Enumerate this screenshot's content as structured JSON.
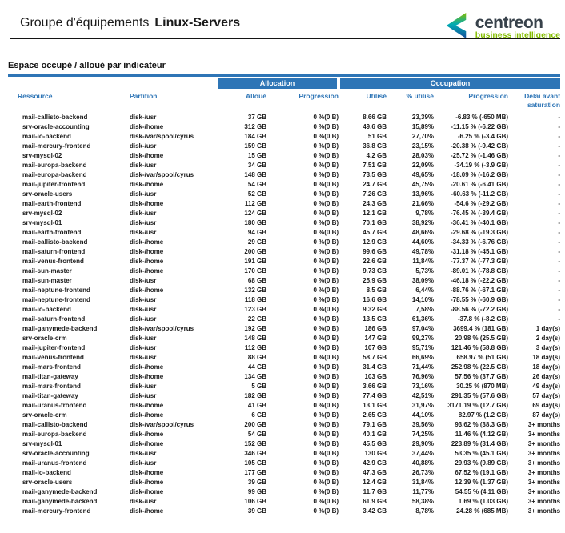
{
  "header": {
    "title_prefix": "Groupe d'équipements",
    "group_name": "Linux-Servers"
  },
  "logo": {
    "brand": "centreon",
    "tagline": "business intelligence"
  },
  "section": {
    "title": "Espace occupé / alloué par indicateur"
  },
  "colors": {
    "accent_blue": "#2e75b6",
    "logo_green": "#84bd00",
    "logo_teal": "#00abb3",
    "logo_navy": "#164e9c",
    "logo_dark": "#38424b",
    "text_dark": "#1b1b1b"
  },
  "table": {
    "group_headers": {
      "allocation": "Allocation",
      "occupation": "Occupation"
    },
    "columns": [
      "Ressource",
      "Partition",
      "Alloué",
      "Progression",
      "Utilisé",
      "% utilisé",
      "Progression",
      "Délai avant saturation"
    ],
    "column_keys": [
      "resource",
      "partition",
      "allocated",
      "alloc-progression",
      "used",
      "used-percent",
      "occ-progression",
      "saturation-delay"
    ],
    "rows": [
      [
        "mail-callisto-backend",
        "disk-/usr",
        "37 GB",
        "0 %(0 B)",
        "8.66 GB",
        "23,39%",
        "-6.83 % (-650 MB)",
        "-"
      ],
      [
        "srv-oracle-accounting",
        "disk-/home",
        "312 GB",
        "0 %(0 B)",
        "49.6 GB",
        "15,89%",
        "-11.15 % (-6.22 GB)",
        "-"
      ],
      [
        "mail-io-backend",
        "disk-/var/spool/cyrus",
        "184 GB",
        "0 %(0 B)",
        "51 GB",
        "27,70%",
        "-6.25 % (-3.4 GB)",
        "-"
      ],
      [
        "mail-mercury-frontend",
        "disk-/usr",
        "159 GB",
        "0 %(0 B)",
        "36.8 GB",
        "23,15%",
        "-20.38 % (-9.42 GB)",
        "-"
      ],
      [
        "srv-mysql-02",
        "disk-/home",
        "15 GB",
        "0 %(0 B)",
        "4.2 GB",
        "28,03%",
        "-25.72 % (-1.46 GB)",
        "-"
      ],
      [
        "mail-europa-backend",
        "disk-/usr",
        "34 GB",
        "0 %(0 B)",
        "7.51 GB",
        "22,09%",
        "-34.19 % (-3.9 GB)",
        "-"
      ],
      [
        "mail-europa-backend",
        "disk-/var/spool/cyrus",
        "148 GB",
        "0 %(0 B)",
        "73.5 GB",
        "49,65%",
        "-18.09 % (-16.2 GB)",
        "-"
      ],
      [
        "mail-jupiter-frontend",
        "disk-/home",
        "54 GB",
        "0 %(0 B)",
        "24.7 GB",
        "45,75%",
        "-20.61 % (-6.41 GB)",
        "-"
      ],
      [
        "srv-oracle-users",
        "disk-/usr",
        "52 GB",
        "0 %(0 B)",
        "7.26 GB",
        "13,96%",
        "-60.63 % (-11.2 GB)",
        "-"
      ],
      [
        "mail-earth-frontend",
        "disk-/home",
        "112 GB",
        "0 %(0 B)",
        "24.3 GB",
        "21,66%",
        "-54.6 % (-29.2 GB)",
        "-"
      ],
      [
        "srv-mysql-02",
        "disk-/usr",
        "124 GB",
        "0 %(0 B)",
        "12.1 GB",
        "9,78%",
        "-76.45 % (-39.4 GB)",
        "-"
      ],
      [
        "srv-mysql-01",
        "disk-/usr",
        "180 GB",
        "0 %(0 B)",
        "70.1 GB",
        "38,92%",
        "-36.41 % (-40.1 GB)",
        "-"
      ],
      [
        "mail-earth-frontend",
        "disk-/usr",
        "94 GB",
        "0 %(0 B)",
        "45.7 GB",
        "48,66%",
        "-29.68 % (-19.3 GB)",
        "-"
      ],
      [
        "mail-callisto-backend",
        "disk-/home",
        "29 GB",
        "0 %(0 B)",
        "12.9 GB",
        "44,60%",
        "-34.33 % (-6.76 GB)",
        "-"
      ],
      [
        "mail-saturn-frontend",
        "disk-/home",
        "200 GB",
        "0 %(0 B)",
        "99.6 GB",
        "49,78%",
        "-31.18 % (-45.1 GB)",
        "-"
      ],
      [
        "mail-venus-frontend",
        "disk-/home",
        "191 GB",
        "0 %(0 B)",
        "22.6 GB",
        "11,84%",
        "-77.37 % (-77.3 GB)",
        "-"
      ],
      [
        "mail-sun-master",
        "disk-/home",
        "170 GB",
        "0 %(0 B)",
        "9.73 GB",
        "5,73%",
        "-89.01 % (-78.8 GB)",
        "-"
      ],
      [
        "mail-sun-master",
        "disk-/usr",
        "68 GB",
        "0 %(0 B)",
        "25.9 GB",
        "38,09%",
        "-46.18 % (-22.2 GB)",
        "-"
      ],
      [
        "mail-neptune-frontend",
        "disk-/home",
        "132 GB",
        "0 %(0 B)",
        "8.5 GB",
        "6,44%",
        "-88.76 % (-67.1 GB)",
        "-"
      ],
      [
        "mail-neptune-frontend",
        "disk-/usr",
        "118 GB",
        "0 %(0 B)",
        "16.6 GB",
        "14,10%",
        "-78.55 % (-60.9 GB)",
        "-"
      ],
      [
        "mail-io-backend",
        "disk-/usr",
        "123 GB",
        "0 %(0 B)",
        "9.32 GB",
        "7,58%",
        "-88.56 % (-72.2 GB)",
        "-"
      ],
      [
        "mail-saturn-frontend",
        "disk-/usr",
        "22 GB",
        "0 %(0 B)",
        "13.5 GB",
        "61,36%",
        "-37.8 % (-8.2 GB)",
        "-"
      ],
      [
        "mail-ganymede-backend",
        "disk-/var/spool/cyrus",
        "192 GB",
        "0 %(0 B)",
        "186 GB",
        "97,04%",
        "3699.4 % (181 GB)",
        "1 day(s)"
      ],
      [
        "srv-oracle-crm",
        "disk-/usr",
        "148 GB",
        "0 %(0 B)",
        "147 GB",
        "99,27%",
        "20.98 % (25.5 GB)",
        "2 day(s)"
      ],
      [
        "mail-jupiter-frontend",
        "disk-/usr",
        "112 GB",
        "0 %(0 B)",
        "107 GB",
        "95,71%",
        "121.46 % (58.8 GB)",
        "3 day(s)"
      ],
      [
        "mail-venus-frontend",
        "disk-/usr",
        "88 GB",
        "0 %(0 B)",
        "58.7 GB",
        "66,69%",
        "658.97 % (51 GB)",
        "18 day(s)"
      ],
      [
        "mail-mars-frontend",
        "disk-/home",
        "44 GB",
        "0 %(0 B)",
        "31.4 GB",
        "71,44%",
        "252.98 % (22.5 GB)",
        "18 day(s)"
      ],
      [
        "mail-titan-gateway",
        "disk-/home",
        "134 GB",
        "0 %(0 B)",
        "103 GB",
        "76,96%",
        "57.56 % (37.7 GB)",
        "26 day(s)"
      ],
      [
        "mail-mars-frontend",
        "disk-/usr",
        "5 GB",
        "0 %(0 B)",
        "3.66 GB",
        "73,16%",
        "30.25 % (870 MB)",
        "49 day(s)"
      ],
      [
        "mail-titan-gateway",
        "disk-/usr",
        "182 GB",
        "0 %(0 B)",
        "77.4 GB",
        "42,51%",
        "291.35 % (57.6 GB)",
        "57 day(s)"
      ],
      [
        "mail-uranus-frontend",
        "disk-/home",
        "41 GB",
        "0 %(0 B)",
        "13.1 GB",
        "31,97%",
        "3171.19 % (12.7 GB)",
        "69 day(s)"
      ],
      [
        "srv-oracle-crm",
        "disk-/home",
        "6 GB",
        "0 %(0 B)",
        "2.65 GB",
        "44,10%",
        "82.97 % (1.2 GB)",
        "87 day(s)"
      ],
      [
        "mail-callisto-backend",
        "disk-/var/spool/cyrus",
        "200 GB",
        "0 %(0 B)",
        "79.1 GB",
        "39,56%",
        "93.62 % (38.3 GB)",
        "3+ months"
      ],
      [
        "mail-europa-backend",
        "disk-/home",
        "54 GB",
        "0 %(0 B)",
        "40.1 GB",
        "74,25%",
        "11.46 % (4.12 GB)",
        "3+ months"
      ],
      [
        "srv-mysql-01",
        "disk-/home",
        "152 GB",
        "0 %(0 B)",
        "45.5 GB",
        "29,90%",
        "223.89 % (31.4 GB)",
        "3+ months"
      ],
      [
        "srv-oracle-accounting",
        "disk-/usr",
        "346 GB",
        "0 %(0 B)",
        "130 GB",
        "37,44%",
        "53.35 % (45.1 GB)",
        "3+ months"
      ],
      [
        "mail-uranus-frontend",
        "disk-/usr",
        "105 GB",
        "0 %(0 B)",
        "42.9 GB",
        "40,88%",
        "29.93 % (9.89 GB)",
        "3+ months"
      ],
      [
        "mail-io-backend",
        "disk-/home",
        "177 GB",
        "0 %(0 B)",
        "47.3 GB",
        "26,73%",
        "67.52 % (19.1 GB)",
        "3+ months"
      ],
      [
        "srv-oracle-users",
        "disk-/home",
        "39 GB",
        "0 %(0 B)",
        "12.4 GB",
        "31,84%",
        "12.39 % (1.37 GB)",
        "3+ months"
      ],
      [
        "mail-ganymede-backend",
        "disk-/home",
        "99 GB",
        "0 %(0 B)",
        "11.7 GB",
        "11,77%",
        "54.55 % (4.11 GB)",
        "3+ months"
      ],
      [
        "mail-ganymede-backend",
        "disk-/usr",
        "106 GB",
        "0 %(0 B)",
        "61.9 GB",
        "58,38%",
        "1.69 % (1.03 GB)",
        "3+ months"
      ],
      [
        "mail-mercury-frontend",
        "disk-/home",
        "39 GB",
        "0 %(0 B)",
        "3.42 GB",
        "8,78%",
        "24.28 % (685 MB)",
        "3+ months"
      ]
    ]
  }
}
